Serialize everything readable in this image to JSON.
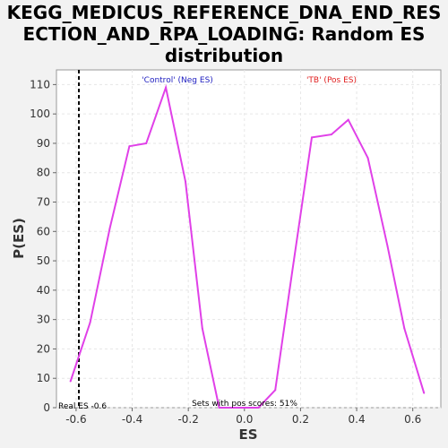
{
  "chart_data": {
    "type": "line",
    "title_lines": [
      "KEGG_MEDICUS_REFERENCE_DNA_END_RES",
      "ECTION_AND_RPA_LOADING: Random ES",
      "distribution"
    ],
    "xlabel": "ES",
    "ylabel": "P(ES)",
    "xlim": [
      -0.67,
      0.7
    ],
    "ylim": [
      0,
      115
    ],
    "x_ticks": [
      -0.6,
      -0.4,
      -0.2,
      0.0,
      0.2,
      0.4,
      0.6
    ],
    "x_tick_labels": [
      "-0.6",
      "-0.4",
      "-0.2",
      "0.0",
      "0.2",
      "0.4",
      "0.6"
    ],
    "y_ticks": [
      0,
      10,
      20,
      30,
      40,
      50,
      60,
      70,
      80,
      90,
      100,
      110
    ],
    "y_tick_labels": [
      "0",
      "10",
      "20",
      "30",
      "40",
      "50",
      "60",
      "70",
      "80",
      "90",
      "100",
      "110"
    ],
    "grid": true,
    "series": [
      {
        "color": "#e040e8",
        "x": [
          -0.62,
          -0.55,
          -0.48,
          -0.41,
          -0.35,
          -0.28,
          -0.21,
          -0.15,
          -0.09,
          -0.02,
          0.05,
          0.11,
          0.17,
          0.24,
          0.31,
          0.37,
          0.44,
          0.51,
          0.57,
          0.64
        ],
        "y": [
          9,
          29,
          61,
          89,
          90,
          109,
          77,
          27,
          0,
          0,
          0,
          6,
          46,
          92,
          93,
          98,
          85,
          55,
          27,
          5
        ]
      }
    ],
    "real_es": -0.59,
    "annotations": {
      "control_label": "'Control' (Neg ES)",
      "control_color": "#2020c0",
      "tb_label": "'TB' (Pos ES)",
      "tb_color": "#e02020",
      "pos_scores": "Sets with pos scores: 51%",
      "real_es_label": "Real ES -0.6"
    }
  }
}
